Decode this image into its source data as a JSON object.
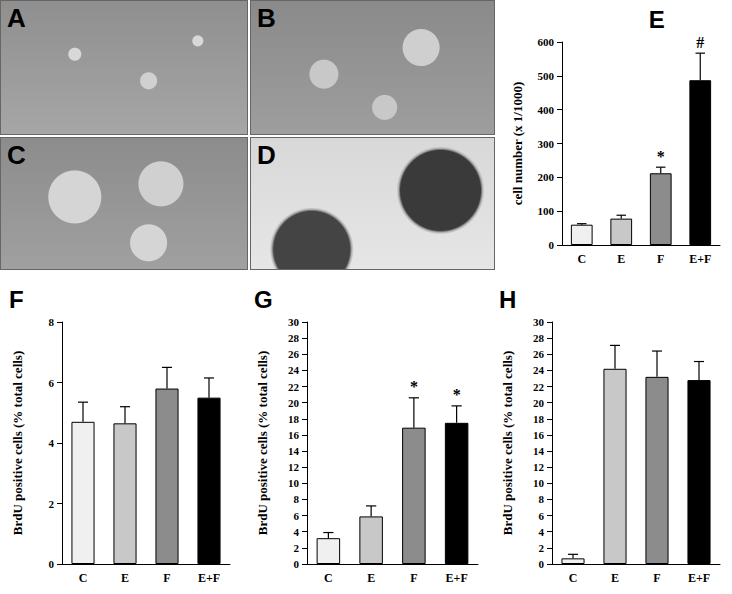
{
  "images": [
    {
      "label": "A"
    },
    {
      "label": "B"
    },
    {
      "label": "C"
    },
    {
      "label": "D"
    }
  ],
  "chart_data": [
    {
      "type": "bar",
      "title": "E",
      "y_label": "cell number (x 1/1000)",
      "categories": [
        "C",
        "E",
        "F",
        "E+F"
      ],
      "values": [
        60,
        78,
        212,
        487
      ],
      "errors": [
        3,
        10,
        18,
        80
      ],
      "colors": [
        "#f0f0f0",
        "#c8c8c8",
        "#8c8c8c",
        "#000000"
      ],
      "ylim": [
        0,
        600
      ],
      "yticks": [
        0,
        100,
        200,
        300,
        400,
        500,
        600
      ],
      "grid": false,
      "annotations": [
        {
          "category": "F",
          "text": "*"
        },
        {
          "category": "E+F",
          "text": "#"
        }
      ]
    },
    {
      "type": "bar",
      "title": "F",
      "y_label": "BrdU positive cells (% total cells)",
      "categories": [
        "C",
        "E",
        "F",
        "E+F"
      ],
      "values": [
        4.7,
        4.65,
        5.8,
        5.5
      ],
      "errors": [
        0.65,
        0.55,
        0.7,
        0.65
      ],
      "colors": [
        "#f0f0f0",
        "#c8c8c8",
        "#8c8c8c",
        "#000000"
      ],
      "ylim": [
        0,
        8
      ],
      "yticks": [
        0,
        2,
        4,
        6,
        8
      ],
      "grid": false,
      "annotations": []
    },
    {
      "type": "bar",
      "title": "G",
      "y_label": "BrdU positive cells (% total cells)",
      "categories": [
        "C",
        "E",
        "F",
        "E+F"
      ],
      "values": [
        3.2,
        5.9,
        16.9,
        17.5
      ],
      "errors": [
        0.7,
        1.3,
        3.7,
        2.1
      ],
      "colors": [
        "#f0f0f0",
        "#c8c8c8",
        "#8c8c8c",
        "#000000"
      ],
      "ylim": [
        0,
        30
      ],
      "yticks": [
        0,
        2,
        4,
        6,
        8,
        10,
        12,
        14,
        16,
        18,
        20,
        22,
        24,
        26,
        28,
        30
      ],
      "grid": false,
      "annotations": [
        {
          "category": "F",
          "text": "*"
        },
        {
          "category": "E+F",
          "text": "*"
        }
      ]
    },
    {
      "type": "bar",
      "title": "H",
      "y_label": "BrdU positive cells (% total cells)",
      "categories": [
        "C",
        "E",
        "F",
        "E+F"
      ],
      "values": [
        0.7,
        24.2,
        23.2,
        22.8
      ],
      "errors": [
        0.5,
        2.9,
        3.2,
        2.3
      ],
      "colors": [
        "#f0f0f0",
        "#c8c8c8",
        "#8c8c8c",
        "#000000"
      ],
      "ylim": [
        0,
        30
      ],
      "yticks": [
        0,
        2,
        4,
        6,
        8,
        10,
        12,
        14,
        16,
        18,
        20,
        22,
        24,
        26,
        28,
        30
      ],
      "grid": false,
      "annotations": []
    }
  ]
}
